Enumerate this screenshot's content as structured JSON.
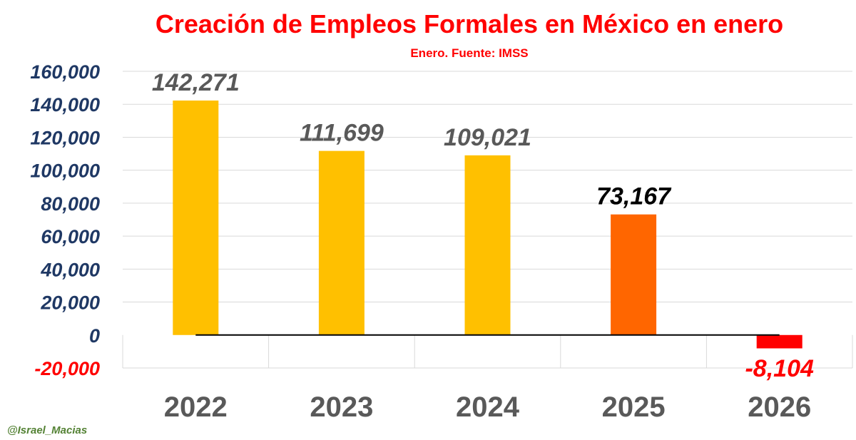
{
  "chart_data": {
    "type": "bar",
    "title": "Creación de Empleos Formales en México en enero",
    "subtitle": "Enero. Fuente: IMSS",
    "categories": [
      "2022",
      "2023",
      "2024",
      "2025",
      "2026"
    ],
    "values": [
      142271,
      111699,
      109021,
      73167,
      -8104
    ],
    "value_labels": [
      "142,271",
      "111,699",
      "109,021",
      "73,167",
      "-8,104"
    ],
    "ylim": [
      -20000,
      160000
    ],
    "yticks": [
      -20000,
      0,
      20000,
      40000,
      60000,
      80000,
      100000,
      120000,
      140000,
      160000
    ],
    "ytick_labels": [
      "-20,000",
      "0",
      "20,000",
      "40,000",
      "60,000",
      "80,000",
      "100,000",
      "120,000",
      "140,000",
      "160,000"
    ],
    "grid": true,
    "legend": "none",
    "bar_colors": [
      "#FFC000",
      "#FFC000",
      "#FFC000",
      "#FF6600",
      "#FF0000"
    ],
    "label_colors": [
      "#595959",
      "#595959",
      "#595959",
      "#000000",
      "#FF0000"
    ],
    "axis_label_color": "#1F3864",
    "negative_tick_color": "#FF0000",
    "title_color": "#FF0000",
    "category_label_color": "#595959"
  },
  "credit": "@Israel_Macias",
  "credit_color": "#548235"
}
